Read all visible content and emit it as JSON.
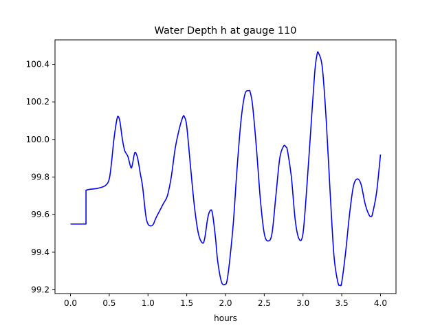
{
  "chart_data": {
    "type": "line",
    "title": "Water Depth h at gauge 110",
    "xlabel": "hours",
    "ylabel": "",
    "xlim": [
      -0.2,
      4.2
    ],
    "ylim": [
      99.18,
      100.53
    ],
    "xticks": [
      0.0,
      0.5,
      1.0,
      1.5,
      2.0,
      2.5,
      3.0,
      3.5,
      4.0
    ],
    "xtick_labels": [
      "0.0",
      "0.5",
      "1.0",
      "1.5",
      "2.0",
      "2.5",
      "3.0",
      "3.5",
      "4.0"
    ],
    "yticks": [
      99.2,
      99.4,
      99.6,
      99.8,
      100.0,
      100.2,
      100.4
    ],
    "ytick_labels": [
      "99.2",
      "99.4",
      "99.6",
      "99.8",
      "100.0",
      "100.2",
      "100.4"
    ],
    "grid": false,
    "series": [
      {
        "color": "#0000ff",
        "x": [
          0.0,
          0.1,
          0.2,
          0.2,
          0.25,
          0.35,
          0.45,
          0.5,
          0.53,
          0.56,
          0.6,
          0.62,
          0.64,
          0.67,
          0.7,
          0.74,
          0.78,
          0.8,
          0.83,
          0.86,
          0.88,
          0.9,
          0.93,
          0.97,
          1.0,
          1.04,
          1.07,
          1.1,
          1.15,
          1.2,
          1.25,
          1.3,
          1.35,
          1.4,
          1.45,
          1.47,
          1.5,
          1.55,
          1.6,
          1.65,
          1.7,
          1.73,
          1.77,
          1.8,
          1.83,
          1.87,
          1.9,
          1.95,
          2.0,
          2.02,
          2.05,
          2.1,
          2.15,
          2.2,
          2.25,
          2.3,
          2.32,
          2.35,
          2.4,
          2.45,
          2.5,
          2.55,
          2.6,
          2.65,
          2.7,
          2.75,
          2.78,
          2.8,
          2.85,
          2.9,
          2.95,
          3.0,
          3.05,
          3.1,
          3.15,
          3.18,
          3.2,
          3.25,
          3.3,
          3.35,
          3.4,
          3.45,
          3.48,
          3.5,
          3.55,
          3.6,
          3.65,
          3.7,
          3.75,
          3.8,
          3.85,
          3.88,
          3.9,
          3.95,
          4.0
        ],
        "y": [
          99.55,
          99.55,
          99.55,
          99.73,
          99.735,
          99.74,
          99.755,
          99.79,
          99.88,
          100.0,
          100.11,
          100.12,
          100.09,
          100.0,
          99.94,
          99.91,
          99.85,
          99.87,
          99.93,
          99.91,
          99.87,
          99.82,
          99.75,
          99.6,
          99.55,
          99.54,
          99.55,
          99.58,
          99.62,
          99.66,
          99.7,
          99.8,
          99.95,
          100.05,
          100.12,
          100.12,
          100.07,
          99.85,
          99.64,
          99.5,
          99.45,
          99.47,
          99.58,
          99.62,
          99.61,
          99.48,
          99.35,
          99.24,
          99.23,
          99.25,
          99.34,
          99.55,
          99.85,
          100.1,
          100.24,
          100.26,
          100.25,
          100.18,
          99.95,
          99.68,
          99.5,
          99.46,
          99.5,
          99.7,
          99.9,
          99.965,
          99.96,
          99.94,
          99.8,
          99.57,
          99.47,
          99.5,
          99.75,
          100.05,
          100.35,
          100.45,
          100.46,
          100.38,
          100.1,
          99.72,
          99.38,
          99.24,
          99.225,
          99.24,
          99.4,
          99.6,
          99.75,
          99.79,
          99.76,
          99.66,
          99.6,
          99.59,
          99.61,
          99.72,
          99.92
        ]
      }
    ]
  }
}
